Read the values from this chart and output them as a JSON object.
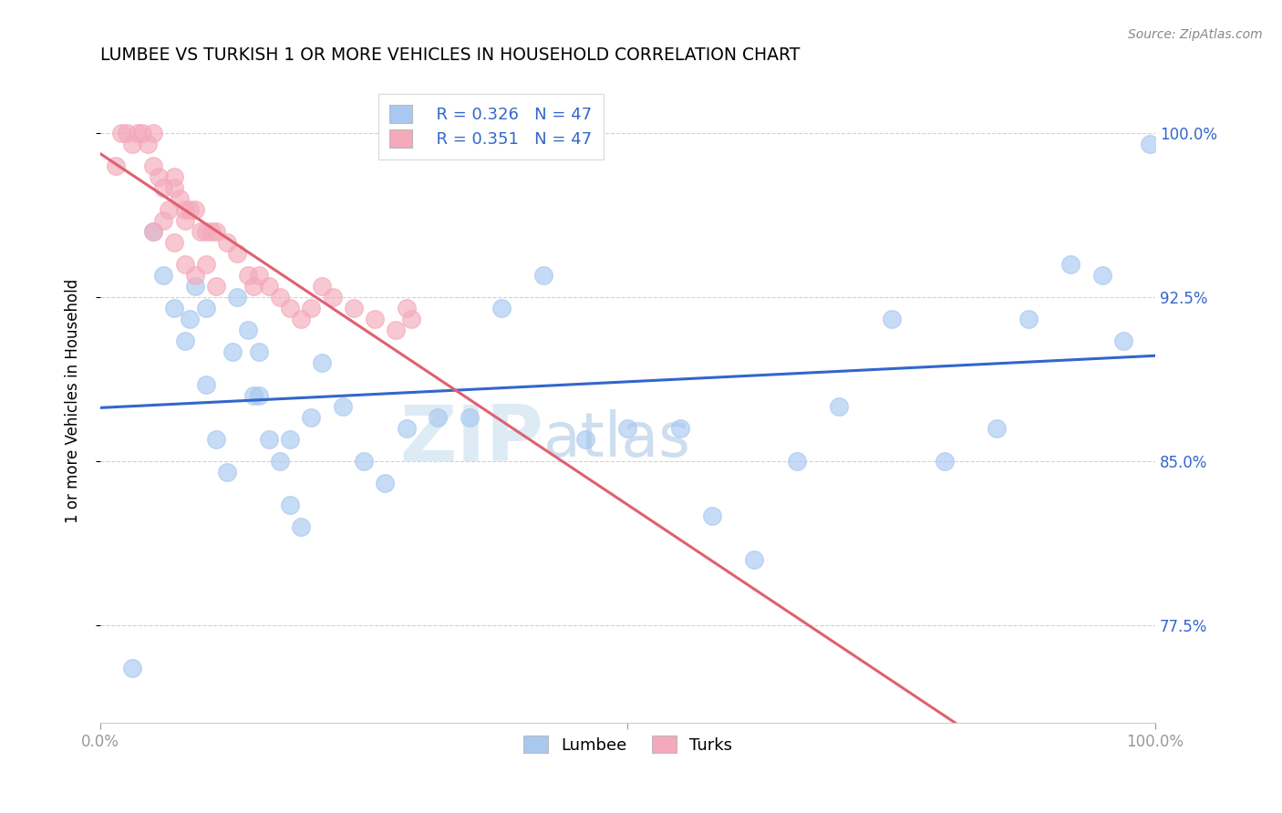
{
  "title": "LUMBEE VS TURKISH 1 OR MORE VEHICLES IN HOUSEHOLD CORRELATION CHART",
  "source_text": "Source: ZipAtlas.com",
  "ylabel": "1 or more Vehicles in Household",
  "yticks": [
    77.5,
    85.0,
    92.5,
    100.0
  ],
  "ytick_labels": [
    "77.5%",
    "85.0%",
    "92.5%",
    "100.0%"
  ],
  "xrange": [
    0.0,
    100.0
  ],
  "yrange": [
    73.0,
    102.5
  ],
  "watermark_zip": "ZIP",
  "watermark_atlas": "atlas",
  "lumbee_R": "0.326",
  "lumbee_N": "47",
  "turks_R": "0.351",
  "turks_N": "47",
  "legend_lumbee": "Lumbee",
  "legend_turks": "Turks",
  "blue_color": "#A8C8F0",
  "pink_color": "#F4AABB",
  "blue_line_color": "#3366CC",
  "pink_line_color": "#E06070",
  "lumbee_x": [
    3.0,
    5.0,
    6.0,
    7.0,
    8.0,
    8.5,
    9.0,
    10.0,
    11.0,
    12.0,
    13.0,
    14.0,
    14.5,
    15.0,
    16.0,
    17.0,
    18.0,
    19.0,
    20.0,
    21.0,
    23.0,
    25.0,
    27.0,
    29.0,
    32.0,
    35.0,
    38.0,
    42.0,
    46.0,
    50.0,
    55.0,
    58.0,
    62.0,
    66.0,
    70.0,
    75.0,
    80.0,
    85.0,
    88.0,
    92.0,
    95.0,
    97.0,
    99.5,
    10.0,
    12.5,
    15.0,
    18.0
  ],
  "lumbee_y": [
    75.5,
    95.5,
    93.5,
    92.0,
    90.5,
    91.5,
    93.0,
    88.5,
    86.0,
    84.5,
    92.5,
    91.0,
    88.0,
    90.0,
    86.0,
    85.0,
    83.0,
    82.0,
    87.0,
    89.5,
    87.5,
    85.0,
    84.0,
    86.5,
    87.0,
    87.0,
    92.0,
    93.5,
    86.0,
    86.5,
    86.5,
    82.5,
    80.5,
    85.0,
    87.5,
    91.5,
    85.0,
    86.5,
    91.5,
    94.0,
    93.5,
    90.5,
    99.5,
    92.0,
    90.0,
    88.0,
    86.0
  ],
  "turks_x": [
    1.5,
    2.0,
    2.5,
    3.0,
    3.5,
    4.0,
    4.5,
    5.0,
    5.0,
    5.5,
    6.0,
    6.5,
    7.0,
    7.0,
    7.5,
    8.0,
    8.0,
    8.5,
    9.0,
    9.5,
    10.0,
    10.5,
    11.0,
    12.0,
    13.0,
    14.0,
    14.5,
    15.0,
    16.0,
    17.0,
    18.0,
    19.0,
    20.0,
    21.0,
    22.0,
    24.0,
    26.0,
    28.0,
    29.0,
    29.5,
    5.0,
    6.0,
    7.0,
    8.0,
    9.0,
    10.0,
    11.0
  ],
  "turks_y": [
    98.5,
    100.0,
    100.0,
    99.5,
    100.0,
    100.0,
    99.5,
    100.0,
    98.5,
    98.0,
    97.5,
    96.5,
    97.5,
    98.0,
    97.0,
    96.5,
    96.0,
    96.5,
    96.5,
    95.5,
    95.5,
    95.5,
    95.5,
    95.0,
    94.5,
    93.5,
    93.0,
    93.5,
    93.0,
    92.5,
    92.0,
    91.5,
    92.0,
    93.0,
    92.5,
    92.0,
    91.5,
    91.0,
    92.0,
    91.5,
    95.5,
    96.0,
    95.0,
    94.0,
    93.5,
    94.0,
    93.0
  ]
}
